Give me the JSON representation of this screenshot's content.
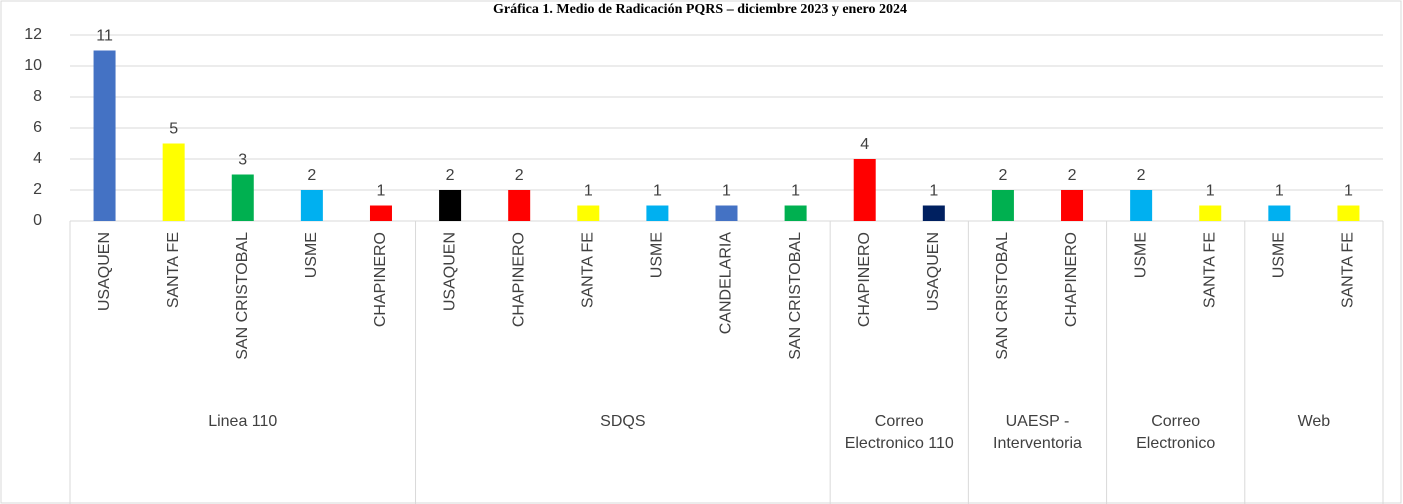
{
  "chart_data": {
    "type": "bar",
    "title": "Gráfica 1. Medio de Radicación PQRS – diciembre 2023 y enero 2024",
    "ylim": [
      0,
      12
    ],
    "yticks": [
      0,
      2,
      4,
      6,
      8,
      10,
      12
    ],
    "grid": true,
    "groups": [
      {
        "label": "Linea 110",
        "categories": [
          "USAQUEN",
          "SANTA FE",
          "SAN CRISTOBAL",
          "USME",
          "CHAPINERO"
        ],
        "values": [
          11,
          5,
          3,
          2,
          1
        ],
        "colors": [
          "#4472c4",
          "#ffff00",
          "#00b050",
          "#00b0f0",
          "#ff0000"
        ]
      },
      {
        "label": "SDQS",
        "categories": [
          "USAQUEN",
          "CHAPINERO",
          "SANTA FE",
          "USME",
          "CANDELARIA",
          "SAN CRISTOBAL"
        ],
        "values": [
          2,
          2,
          1,
          1,
          1,
          1
        ],
        "colors": [
          "#000000",
          "#ff0000",
          "#ffff00",
          "#00b0f0",
          "#4472c4",
          "#00b050"
        ]
      },
      {
        "label": "Correo Electronico 110",
        "categories": [
          "CHAPINERO",
          "USAQUEN"
        ],
        "values": [
          4,
          1
        ],
        "colors": [
          "#ff0000",
          "#002060"
        ]
      },
      {
        "label": "UAESP - Interventoria",
        "categories": [
          "SAN CRISTOBAL",
          "CHAPINERO"
        ],
        "values": [
          2,
          2
        ],
        "colors": [
          "#00b050",
          "#ff0000"
        ]
      },
      {
        "label": "Correo Electronico",
        "categories": [
          "USME",
          "SANTA FE"
        ],
        "values": [
          2,
          1
        ],
        "colors": [
          "#00b0f0",
          "#ffff00"
        ]
      },
      {
        "label": "Web",
        "categories": [
          "USME",
          "SANTA FE"
        ],
        "values": [
          1,
          1
        ],
        "colors": [
          "#00b0f0",
          "#ffff00"
        ]
      }
    ]
  }
}
